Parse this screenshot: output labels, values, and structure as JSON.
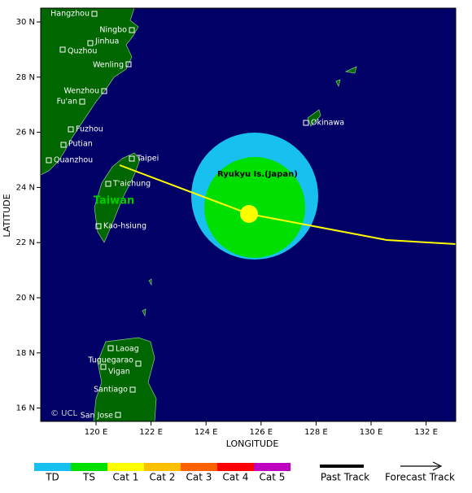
{
  "map": {
    "axes": {
      "x_label": "LONGITUDE",
      "y_label": "LATITUDE",
      "x_ticks": [
        {
          "value": 120,
          "label": "120 E"
        },
        {
          "value": 122,
          "label": "122 E"
        },
        {
          "value": 124,
          "label": "124 E"
        },
        {
          "value": 126,
          "label": "126 E"
        },
        {
          "value": 128,
          "label": "128 E"
        },
        {
          "value": 130,
          "label": "130 E"
        },
        {
          "value": 132,
          "label": "132 E"
        }
      ],
      "y_ticks": [
        {
          "value": 30,
          "label": "30 N"
        },
        {
          "value": 28,
          "label": "28 N"
        },
        {
          "value": 26,
          "label": "26 N"
        },
        {
          "value": 24,
          "label": "24 N"
        },
        {
          "value": 22,
          "label": "22 N"
        },
        {
          "value": 20,
          "label": "20 N"
        },
        {
          "value": 18,
          "label": "18 N"
        },
        {
          "value": 16,
          "label": "16 N"
        }
      ]
    },
    "places": [
      "Hangzhou",
      "Ningbo",
      "Jinhua",
      "Quzhou",
      "Wenling",
      "Wenzhou",
      "Fu'an",
      "Fuzhou",
      "Putian",
      "Quanzhou",
      "Taipei",
      "T'aichung",
      "Kao-hsiung",
      "Okinawa",
      "Laoag",
      "Tuguegarao",
      "Vigan",
      "Santiago",
      "San Jose"
    ],
    "regions": [
      "Taiwan",
      "Ryukyu Is.(Japan)"
    ],
    "credit": "© UCL"
  },
  "legend": {
    "categories": [
      "TD",
      "TS",
      "Cat 1",
      "Cat 2",
      "Cat 3",
      "Cat 4",
      "Cat 5"
    ],
    "colors": [
      "#18c0f0",
      "#00e000",
      "#ffff00",
      "#ffc000",
      "#ff6000",
      "#ff0000",
      "#c000c0"
    ],
    "past_track": "Past Track",
    "forecast_track": "Forecast Track"
  }
}
